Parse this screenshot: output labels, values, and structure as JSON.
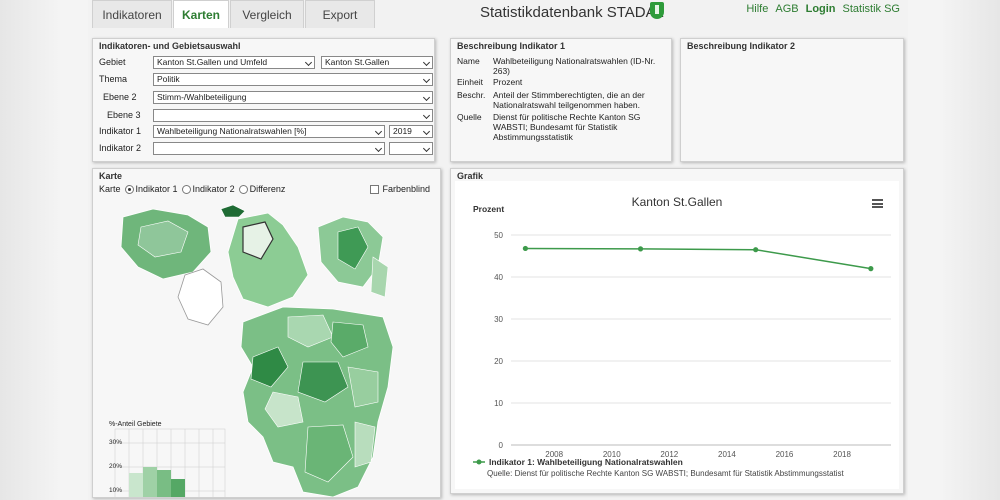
{
  "tabs": [
    {
      "label": "Indikatoren",
      "active": false
    },
    {
      "label": "Karten",
      "active": true
    },
    {
      "label": "Vergleich",
      "active": false
    },
    {
      "label": "Export",
      "active": false
    }
  ],
  "app_title": "Statistikdatenbank STADA2",
  "top_links": {
    "hilfe": "Hilfe",
    "agb": "AGB",
    "login": "Login",
    "statistik": "Statistik SG"
  },
  "selection": {
    "heading": "Indikatoren- und Gebietsauswahl",
    "gebiet_label": "Gebiet",
    "gebiet_value": "Kanton St.Gallen und Umfeld",
    "gebiet_value2": "Kanton St.Gallen",
    "thema_label": "Thema",
    "thema_value": "Politik",
    "ebene2_label": "Ebene 2",
    "ebene2_value": "Stimm-/Wahlbeteiligung",
    "ebene3_label": "Ebene 3",
    "ebene3_value": "",
    "ind1_label": "Indikator 1",
    "ind1_value": "Wahlbeteiligung Nationalratswahlen [%]",
    "ind1_year": "2019",
    "ind2_label": "Indikator 2",
    "ind2_value": "",
    "ind2_year": ""
  },
  "desc1": {
    "heading": "Beschreibung Indikator 1",
    "name_k": "Name",
    "name_v": "Wahlbeteiligung Nationalratswahlen (ID-Nr. 263)",
    "einheit_k": "Einheit",
    "einheit_v": "Prozent",
    "beschr_k": "Beschr.",
    "beschr_v": "Anteil der Stimmberechtigten, die an der Nationalratswahl teilgenommen haben.",
    "quelle_k": "Quelle",
    "quelle_v": "Dienst für politische Rechte Kanton SG WABSTI; Bundesamt für Statistik Abstimmungsstatistik"
  },
  "desc2": {
    "heading": "Beschreibung Indikator 2"
  },
  "map": {
    "heading": "Karte",
    "karte_label": "Karte",
    "opt1": "Indikator 1",
    "opt2": "Indikator 2",
    "opt3": "Differenz",
    "selected_option": "Indikator 1",
    "farbenblind": "Farbenblind",
    "hist_title": "%-Anteil Gebiete",
    "hist_ticks": [
      "30%",
      "20%",
      "10%"
    ]
  },
  "grafik": {
    "heading": "Grafik"
  },
  "colors": {
    "accent": "#2e7d32",
    "line": "#3d9a4b"
  },
  "chart_data": {
    "type": "line",
    "title": "Kanton St.Gallen",
    "ylabel": "Prozent",
    "xlabel": "",
    "x": [
      2007,
      2011,
      2015,
      2019
    ],
    "series": [
      {
        "name": "Indikator 1: Wahlbeteiligung Nationalratswahlen",
        "values": [
          46.8,
          46.7,
          46.5,
          42.0
        ]
      }
    ],
    "xlim": [
      2006.5,
      2019.7
    ],
    "ylim": [
      0,
      50
    ],
    "x_ticks": [
      2008,
      2010,
      2012,
      2014,
      2016,
      2018
    ],
    "y_ticks": [
      0,
      10,
      20,
      30,
      40,
      50
    ],
    "grid": true,
    "legend": "bottom-left",
    "source_note": "Quelle: Dienst für politische Rechte Kanton SG WABSTI; Bundesamt für Statistik Abstimmungsstatist"
  }
}
